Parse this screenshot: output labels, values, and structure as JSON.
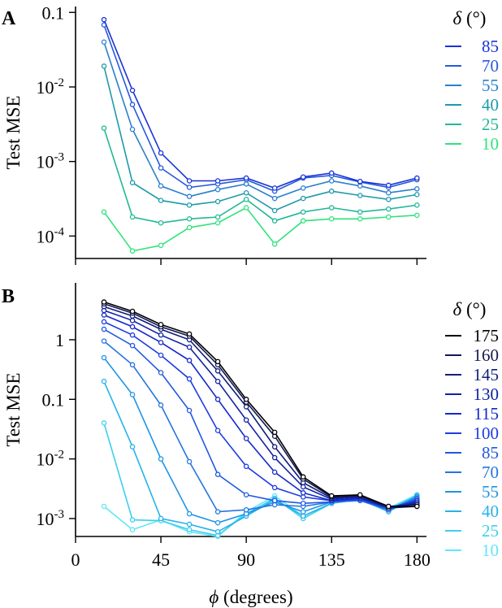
{
  "chart_data": [
    {
      "type": "line",
      "panel_label": "A",
      "ylabel": "Test MSE",
      "xlabel": "",
      "yscale": "log",
      "ylim": [
        5e-05,
        0.12
      ],
      "xlim": [
        0,
        185
      ],
      "yticks": [
        {
          "value": 0.1,
          "label": "0.1"
        },
        {
          "value": 0.01,
          "label": "10-2"
        },
        {
          "value": 0.001,
          "label": "10-3"
        },
        {
          "value": 0.0001,
          "label": "10-4"
        }
      ],
      "xticks": [
        {
          "value": 0,
          "label": ""
        },
        {
          "value": 45,
          "label": ""
        },
        {
          "value": 90,
          "label": ""
        },
        {
          "value": 135,
          "label": ""
        },
        {
          "value": 180,
          "label": ""
        }
      ],
      "legend_title": "δ (°)",
      "legend_position": "right",
      "x": [
        15,
        30,
        45,
        60,
        75,
        90,
        105,
        120,
        135,
        150,
        165,
        180
      ],
      "series": [
        {
          "name": "85",
          "color": "#1a33d6",
          "values": [
            0.08,
            0.009,
            0.0013,
            0.00055,
            0.00055,
            0.0006,
            0.00044,
            0.00062,
            0.0007,
            0.00054,
            0.00048,
            0.0006
          ]
        },
        {
          "name": "70",
          "color": "#2659dc",
          "values": [
            0.068,
            0.0058,
            0.00082,
            0.00045,
            0.0005,
            0.00057,
            0.0004,
            0.0006,
            0.00065,
            0.00053,
            0.00045,
            0.00057
          ]
        },
        {
          "name": "55",
          "color": "#2a7fcc",
          "values": [
            0.04,
            0.0027,
            0.00047,
            0.00034,
            0.00042,
            0.0005,
            0.00032,
            0.00044,
            0.00055,
            0.00047,
            0.00038,
            0.00043
          ]
        },
        {
          "name": "40",
          "color": "#1e9aaa",
          "values": [
            0.019,
            0.00052,
            0.0003,
            0.00026,
            0.00029,
            0.00038,
            0.00022,
            0.00032,
            0.0004,
            0.00035,
            0.00031,
            0.00036
          ]
        },
        {
          "name": "25",
          "color": "#22b896",
          "values": [
            0.0028,
            0.00018,
            0.00015,
            0.00017,
            0.00018,
            0.00031,
            0.00016,
            0.00021,
            0.00024,
            0.00021,
            0.00023,
            0.00026
          ]
        },
        {
          "name": "10",
          "color": "#2fe37a",
          "values": [
            0.00021,
            6.3e-05,
            7.5e-05,
            0.00013,
            0.00015,
            0.00024,
            7.8e-05,
            0.00016,
            0.00017,
            0.00017,
            0.00018,
            0.00019
          ]
        }
      ]
    },
    {
      "type": "line",
      "panel_label": "B",
      "ylabel": "Test MSE",
      "xlabel": "ϕ (degrees)",
      "yscale": "log",
      "ylim": [
        0.0005,
        9
      ],
      "xlim": [
        0,
        185
      ],
      "yticks": [
        {
          "value": 1,
          "label": "1"
        },
        {
          "value": 0.1,
          "label": "0.1"
        },
        {
          "value": 0.01,
          "label": "10-2"
        },
        {
          "value": 0.001,
          "label": "10-3"
        }
      ],
      "xticks": [
        {
          "value": 0,
          "label": "0"
        },
        {
          "value": 45,
          "label": "45"
        },
        {
          "value": 90,
          "label": "90"
        },
        {
          "value": 135,
          "label": "135"
        },
        {
          "value": 180,
          "label": "180"
        }
      ],
      "legend_title": "δ (°)",
      "legend_position": "right",
      "x": [
        15,
        30,
        45,
        60,
        75,
        90,
        105,
        120,
        135,
        150,
        165,
        180
      ],
      "series": [
        {
          "name": "175",
          "color": "#000000",
          "values": [
            4.3,
            3.0,
            1.8,
            1.25,
            0.43,
            0.1,
            0.028,
            0.005,
            0.0024,
            0.0025,
            0.0016,
            0.0016
          ]
        },
        {
          "name": "160",
          "color": "#141852",
          "values": [
            4.0,
            2.8,
            1.65,
            1.15,
            0.38,
            0.09,
            0.024,
            0.0046,
            0.0023,
            0.0024,
            0.0016,
            0.0017
          ]
        },
        {
          "name": "145",
          "color": "#101e7c",
          "values": [
            3.6,
            2.5,
            1.5,
            1.0,
            0.3,
            0.075,
            0.016,
            0.004,
            0.0022,
            0.0024,
            0.0015,
            0.0016
          ]
        },
        {
          "name": "130",
          "color": "#0f21a3",
          "values": [
            3.1,
            2.1,
            1.2,
            0.75,
            0.2,
            0.045,
            0.0105,
            0.0034,
            0.0021,
            0.0023,
            0.0015,
            0.0018
          ]
        },
        {
          "name": "115",
          "color": "#1528c8",
          "values": [
            2.6,
            1.65,
            0.9,
            0.45,
            0.1,
            0.022,
            0.006,
            0.0027,
            0.002,
            0.0022,
            0.0015,
            0.0019
          ]
        },
        {
          "name": "100",
          "color": "#1d3de0",
          "values": [
            2.0,
            1.2,
            0.55,
            0.22,
            0.03,
            0.0075,
            0.0033,
            0.0023,
            0.002,
            0.0021,
            0.0015,
            0.002
          ]
        },
        {
          "name": "85",
          "color": "#2057e4",
          "values": [
            1.5,
            0.8,
            0.28,
            0.065,
            0.0055,
            0.0025,
            0.002,
            0.0018,
            0.0019,
            0.0021,
            0.0014,
            0.0021
          ]
        },
        {
          "name": "70",
          "color": "#2574e0",
          "values": [
            0.95,
            0.38,
            0.08,
            0.009,
            0.0013,
            0.0014,
            0.0017,
            0.0016,
            0.0019,
            0.002,
            0.0014,
            0.0022
          ]
        },
        {
          "name": "55",
          "color": "#1f94e6",
          "values": [
            0.5,
            0.12,
            0.01,
            0.0012,
            0.00085,
            0.0012,
            0.0019,
            0.0013,
            0.0019,
            0.002,
            0.0014,
            0.0023
          ]
        },
        {
          "name": "40",
          "color": "#25b3ea",
          "values": [
            0.2,
            0.016,
            0.001,
            0.0008,
            0.0006,
            0.0011,
            0.0021,
            0.0011,
            0.0018,
            0.0021,
            0.0013,
            0.0024
          ]
        },
        {
          "name": "25",
          "color": "#3ccfee",
          "values": [
            0.04,
            0.00095,
            0.00092,
            0.00065,
            0.00052,
            0.0012,
            0.0022,
            0.001,
            0.0018,
            0.0021,
            0.0014,
            0.0025
          ]
        },
        {
          "name": "10",
          "color": "#62e6f6",
          "values": [
            0.0016,
            0.00065,
            0.00095,
            0.0006,
            0.0005,
            0.0013,
            0.0024,
            0.0011,
            0.0018,
            0.0021,
            0.0015,
            0.0025
          ]
        }
      ]
    }
  ]
}
